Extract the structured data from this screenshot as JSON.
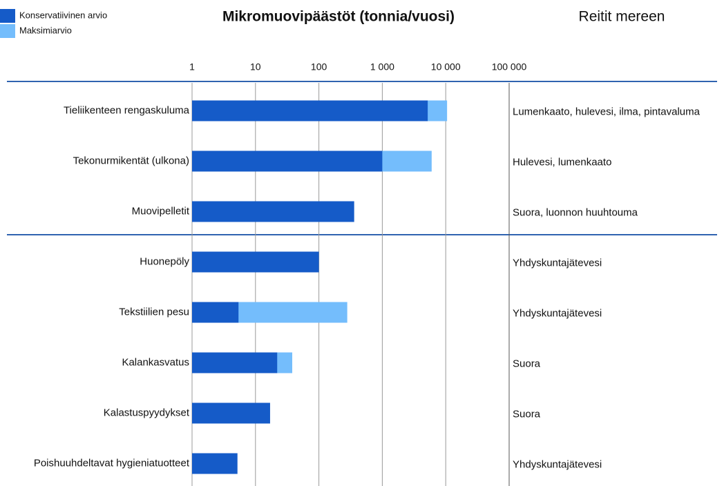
{
  "chart_data": {
    "type": "bar",
    "orientation": "horizontal",
    "title": "Mikromuovipäästöt (tonnia/vuosi)",
    "routes_title": "Reitit mereen",
    "log_scale": true,
    "grid": true,
    "legend": "top-left",
    "xlim": [
      1,
      100000
    ],
    "xticks": [
      1,
      10,
      100,
      {
        "value": 1000,
        "label": "1 000"
      },
      {
        "value": 10000,
        "label": "10 000"
      },
      {
        "value": 100000,
        "label": "100 000"
      }
    ],
    "categories": [
      "Tieliikenteen rengaskuluma",
      "Tekonurmikentät (ulkona)",
      "Muovipelletit",
      "Huonepöly",
      "Tekstiilien pesu",
      "Kalankasvatus",
      "Kalastuspyydykset",
      "Poishuuhdeltavat hygieniatuotteet"
    ],
    "routes": [
      "Lumenkaato, hulevesi, ilma, pintavaluma",
      "Hulevesi, lumenkaato",
      "Suora, luonnon huuhtouma",
      "Yhdyskuntajätevesi",
      "Yhdyskuntajätevesi",
      "Suora",
      "Suora",
      "Yhdyskuntajätevesi"
    ],
    "series": [
      {
        "name": "Konservatiivinen arvio",
        "color": "#155bc8",
        "values": [
          5200,
          1000,
          360,
          100,
          5.4,
          22,
          17,
          5.2
        ]
      },
      {
        "name": "Maksimiarvio",
        "color": "#74bdfc",
        "values": [
          10500,
          6000,
          null,
          null,
          280,
          38,
          null,
          null
        ]
      }
    ]
  }
}
